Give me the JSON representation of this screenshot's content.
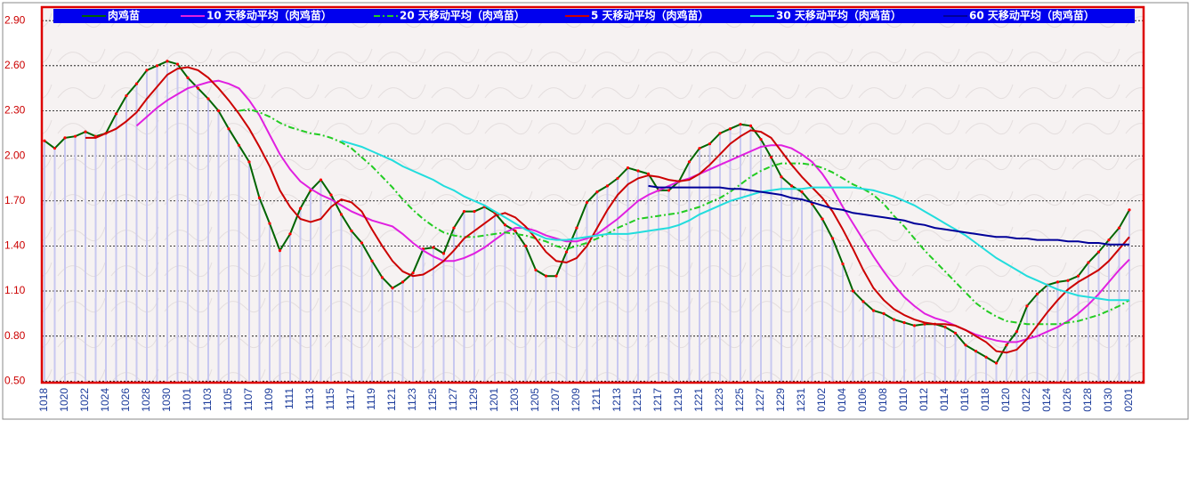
{
  "chart_data": {
    "type": "line",
    "categories": [
      "1018",
      null,
      "1020",
      null,
      "1022",
      null,
      "1024",
      null,
      "1026",
      null,
      "1028",
      null,
      "1030",
      null,
      "1101",
      null,
      "1103",
      null,
      "1105",
      null,
      "1107",
      null,
      "1109",
      null,
      "1111",
      null,
      "1113",
      null,
      "1115",
      null,
      "1117",
      null,
      "1119",
      null,
      "1121",
      null,
      "1123",
      null,
      "1125",
      null,
      "1127",
      null,
      "1129",
      null,
      "1201",
      null,
      "1203",
      null,
      "1205",
      null,
      "1207",
      null,
      "1209",
      null,
      "1211",
      null,
      "1213",
      null,
      "1215",
      null,
      "1217",
      null,
      "1219",
      null,
      "1221",
      null,
      "1223",
      null,
      "1225",
      null,
      "1227",
      null,
      "1229",
      null,
      "1231",
      null,
      "0102",
      null,
      "0104",
      null,
      "0106",
      null,
      "0108",
      null,
      "0110",
      null,
      "0112",
      null,
      "0114",
      null,
      "0116",
      null,
      "0118",
      null,
      "0120",
      null,
      "0122",
      null,
      "0124",
      null,
      "0126",
      null,
      "0128",
      null,
      "0130",
      null,
      "0201"
    ],
    "ylim": [
      0.49,
      2.99
    ],
    "yticks": [
      {
        "value": 0.5,
        "label": "0.50"
      },
      {
        "value": 0.8,
        "label": "0.80"
      },
      {
        "value": 1.1,
        "label": "1.10"
      },
      {
        "value": 1.4,
        "label": "1.40"
      },
      {
        "value": 1.7,
        "label": "1.70"
      },
      {
        "value": 2.0,
        "label": "2.00"
      },
      {
        "value": 2.3,
        "label": "2.30"
      },
      {
        "value": 2.6,
        "label": "2.60"
      },
      {
        "value": 2.9,
        "label": "2.90"
      }
    ],
    "grid": true,
    "legend": "top",
    "series": [
      {
        "name": "肉鸡苗",
        "color": "#006400",
        "markers": true,
        "marker_color": "#ff0000",
        "bar_color": "#c8c8f0",
        "values": [
          2.1,
          2.05,
          2.12,
          2.13,
          2.16,
          2.13,
          2.15,
          2.28,
          2.4,
          2.48,
          2.57,
          2.6,
          2.63,
          2.61,
          2.52,
          2.45,
          2.38,
          2.3,
          2.18,
          2.07,
          1.96,
          1.72,
          1.55,
          1.37,
          1.48,
          1.65,
          1.77,
          1.84,
          1.74,
          1.61,
          1.5,
          1.42,
          1.3,
          1.19,
          1.12,
          1.16,
          1.22,
          1.38,
          1.39,
          1.35,
          1.52,
          1.63,
          1.63,
          1.66,
          1.62,
          1.54,
          1.5,
          1.4,
          1.24,
          1.2,
          1.2,
          1.36,
          1.52,
          1.69,
          1.76,
          1.8,
          1.85,
          1.92,
          1.9,
          1.88,
          1.77,
          1.77,
          1.83,
          1.96,
          2.05,
          2.08,
          2.15,
          2.18,
          2.21,
          2.2,
          2.11,
          1.99,
          1.86,
          1.8,
          1.76,
          1.68,
          1.58,
          1.45,
          1.28,
          1.1,
          1.03,
          0.97,
          0.95,
          0.91,
          0.89,
          0.87,
          0.88,
          0.88,
          0.86,
          0.82,
          0.74,
          0.7,
          0.66,
          0.62,
          0.74,
          0.83,
          1.0,
          1.08,
          1.14,
          1.16,
          1.17,
          1.2,
          1.29,
          1.36,
          1.44,
          1.52,
          1.64
        ]
      },
      {
        "name": "10 天移动平均（肉鸡苗）",
        "color": "#e020e0",
        "values": [
          null,
          null,
          null,
          null,
          null,
          null,
          null,
          null,
          null,
          2.2,
          2.26,
          2.32,
          2.37,
          2.41,
          2.45,
          2.47,
          2.49,
          2.5,
          2.48,
          2.45,
          2.37,
          2.27,
          2.14,
          2.01,
          1.91,
          1.83,
          1.78,
          1.74,
          1.71,
          1.67,
          1.63,
          1.6,
          1.57,
          1.55,
          1.53,
          1.48,
          1.42,
          1.37,
          1.33,
          1.3,
          1.3,
          1.32,
          1.35,
          1.39,
          1.44,
          1.49,
          1.52,
          1.52,
          1.5,
          1.47,
          1.45,
          1.43,
          1.43,
          1.45,
          1.48,
          1.53,
          1.58,
          1.64,
          1.7,
          1.74,
          1.77,
          1.8,
          1.83,
          1.85,
          1.88,
          1.91,
          1.94,
          1.97,
          2.0,
          2.03,
          2.06,
          2.07,
          2.07,
          2.05,
          2.01,
          1.96,
          1.88,
          1.78,
          1.66,
          1.55,
          1.44,
          1.33,
          1.23,
          1.14,
          1.06,
          1.0,
          0.95,
          0.92,
          0.9,
          0.87,
          0.84,
          0.81,
          0.79,
          0.77,
          0.76,
          0.76,
          0.78,
          0.8,
          0.83,
          0.86,
          0.9,
          0.95,
          1.01,
          1.08,
          1.16,
          1.24,
          1.31
        ]
      },
      {
        "name": "20 天移动平均（肉鸡苗）",
        "color": "#22cc22",
        "line_style": "dash-dot",
        "values": [
          null,
          null,
          null,
          null,
          null,
          null,
          null,
          null,
          null,
          null,
          null,
          null,
          null,
          null,
          null,
          null,
          null,
          null,
          null,
          2.3,
          2.31,
          2.29,
          2.26,
          2.22,
          2.19,
          2.17,
          2.15,
          2.14,
          2.12,
          2.09,
          2.05,
          1.99,
          1.93,
          1.86,
          1.79,
          1.71,
          1.64,
          1.58,
          1.53,
          1.49,
          1.47,
          1.46,
          1.46,
          1.47,
          1.48,
          1.49,
          1.48,
          1.47,
          1.45,
          1.43,
          1.4,
          1.38,
          1.4,
          1.42,
          1.45,
          1.48,
          1.52,
          1.55,
          1.58,
          1.59,
          1.6,
          1.61,
          1.62,
          1.64,
          1.66,
          1.69,
          1.72,
          1.76,
          1.81,
          1.86,
          1.9,
          1.93,
          1.95,
          1.95,
          1.95,
          1.94,
          1.92,
          1.89,
          1.85,
          1.81,
          1.78,
          1.74,
          1.68,
          1.6,
          1.53,
          1.45,
          1.37,
          1.3,
          1.23,
          1.16,
          1.09,
          1.02,
          0.97,
          0.93,
          0.9,
          0.89,
          0.88,
          0.88,
          0.88,
          0.88,
          0.89,
          0.9,
          0.92,
          0.94,
          0.97,
          1.0,
          1.04
        ]
      },
      {
        "name": "5 天移动平均（肉鸡苗）",
        "color": "#cc0000",
        "values": [
          null,
          null,
          null,
          null,
          2.12,
          2.12,
          2.15,
          2.18,
          2.23,
          2.29,
          2.38,
          2.46,
          2.54,
          2.58,
          2.59,
          2.57,
          2.52,
          2.45,
          2.37,
          2.28,
          2.18,
          2.06,
          1.93,
          1.77,
          1.66,
          1.58,
          1.56,
          1.58,
          1.66,
          1.71,
          1.69,
          1.63,
          1.51,
          1.4,
          1.3,
          1.23,
          1.2,
          1.21,
          1.25,
          1.3,
          1.37,
          1.45,
          1.5,
          1.55,
          1.6,
          1.62,
          1.59,
          1.53,
          1.45,
          1.36,
          1.3,
          1.29,
          1.32,
          1.4,
          1.52,
          1.64,
          1.74,
          1.81,
          1.85,
          1.87,
          1.86,
          1.84,
          1.83,
          1.84,
          1.88,
          1.94,
          2.01,
          2.08,
          2.13,
          2.17,
          2.16,
          2.12,
          2.03,
          1.94,
          1.86,
          1.79,
          1.72,
          1.63,
          1.51,
          1.38,
          1.24,
          1.12,
          1.04,
          0.98,
          0.94,
          0.91,
          0.89,
          0.88,
          0.88,
          0.87,
          0.84,
          0.8,
          0.76,
          0.7,
          0.69,
          0.71,
          0.78,
          0.87,
          0.96,
          1.04,
          1.11,
          1.16,
          1.2,
          1.24,
          1.3,
          1.38,
          1.46
        ]
      },
      {
        "name": "30 天移动平均（肉鸡苗）",
        "color": "#22dddd",
        "values": [
          null,
          null,
          null,
          null,
          null,
          null,
          null,
          null,
          null,
          null,
          null,
          null,
          null,
          null,
          null,
          null,
          null,
          null,
          null,
          null,
          null,
          null,
          null,
          null,
          null,
          null,
          null,
          null,
          null,
          2.1,
          2.08,
          2.06,
          2.03,
          2.0,
          1.97,
          1.93,
          1.9,
          1.87,
          1.84,
          1.8,
          1.77,
          1.73,
          1.7,
          1.67,
          1.63,
          1.59,
          1.55,
          1.51,
          1.48,
          1.45,
          1.44,
          1.44,
          1.45,
          1.46,
          1.47,
          1.48,
          1.48,
          1.48,
          1.49,
          1.5,
          1.51,
          1.52,
          1.54,
          1.57,
          1.61,
          1.64,
          1.67,
          1.7,
          1.72,
          1.74,
          1.76,
          1.77,
          1.78,
          1.78,
          1.78,
          1.79,
          1.79,
          1.79,
          1.79,
          1.79,
          1.78,
          1.77,
          1.75,
          1.73,
          1.7,
          1.67,
          1.63,
          1.59,
          1.55,
          1.51,
          1.47,
          1.42,
          1.37,
          1.32,
          1.28,
          1.24,
          1.2,
          1.17,
          1.14,
          1.11,
          1.09,
          1.07,
          1.06,
          1.05,
          1.04,
          1.04,
          1.04
        ]
      },
      {
        "name": "60 天移动平均（肉鸡苗）",
        "color": "#000099",
        "values": [
          null,
          null,
          null,
          null,
          null,
          null,
          null,
          null,
          null,
          null,
          null,
          null,
          null,
          null,
          null,
          null,
          null,
          null,
          null,
          null,
          null,
          null,
          null,
          null,
          null,
          null,
          null,
          null,
          null,
          null,
          null,
          null,
          null,
          null,
          null,
          null,
          null,
          null,
          null,
          null,
          null,
          null,
          null,
          null,
          null,
          null,
          null,
          null,
          null,
          null,
          null,
          null,
          null,
          null,
          null,
          null,
          null,
          null,
          null,
          1.8,
          1.79,
          1.79,
          1.79,
          1.79,
          1.79,
          1.79,
          1.79,
          1.78,
          1.78,
          1.77,
          1.76,
          1.75,
          1.74,
          1.72,
          1.71,
          1.69,
          1.67,
          1.65,
          1.64,
          1.62,
          1.61,
          1.6,
          1.59,
          1.58,
          1.57,
          1.55,
          1.54,
          1.52,
          1.51,
          1.5,
          1.49,
          1.48,
          1.47,
          1.46,
          1.46,
          1.45,
          1.45,
          1.44,
          1.44,
          1.44,
          1.43,
          1.43,
          1.42,
          1.42,
          1.41,
          1.41,
          1.41
        ]
      }
    ]
  }
}
